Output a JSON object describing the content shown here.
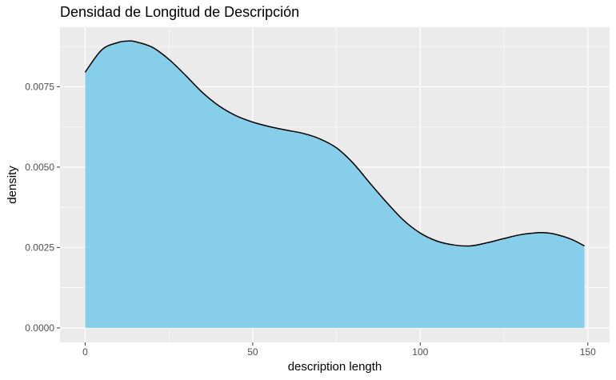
{
  "chart_data": {
    "type": "area",
    "title": "Densidad de Longitud de Descripción",
    "xlabel": "description length",
    "ylabel": "density",
    "xlim": [
      -7.5,
      156.5
    ],
    "ylim": [
      -0.00045,
      0.00935
    ],
    "x_ticks": [
      0,
      50,
      100,
      150
    ],
    "x_tick_labels": [
      "0",
      "50",
      "100",
      "150"
    ],
    "y_ticks": [
      0.0,
      0.0025,
      0.005,
      0.0075
    ],
    "y_tick_labels": [
      "0.0000",
      "0.0025",
      "0.0050",
      "0.0075"
    ],
    "grid": true,
    "legend": "none",
    "series": [
      {
        "x": [
          0,
          5,
          10,
          13,
          15,
          20,
          25,
          30,
          35,
          40,
          45,
          50,
          55,
          60,
          65,
          70,
          75,
          80,
          85,
          90,
          95,
          100,
          105,
          110,
          115,
          120,
          125,
          130,
          135,
          137,
          140,
          145,
          149
        ],
        "y": [
          0.00795,
          0.00865,
          0.00888,
          0.00892,
          0.0089,
          0.00873,
          0.00835,
          0.00785,
          0.00732,
          0.0069,
          0.0066,
          0.0064,
          0.00626,
          0.00615,
          0.00605,
          0.00588,
          0.0056,
          0.00512,
          0.0045,
          0.0039,
          0.00335,
          0.00295,
          0.0027,
          0.00258,
          0.00255,
          0.00265,
          0.00278,
          0.0029,
          0.00296,
          0.00296,
          0.00292,
          0.00276,
          0.00255
        ]
      }
    ]
  },
  "colors": {
    "panel_bg": "#ebebeb",
    "grid": "#ffffff",
    "fill": "#87ceeb",
    "line": "#000000",
    "tick_text": "#4d4d4d",
    "tick_mark": "#333333"
  }
}
